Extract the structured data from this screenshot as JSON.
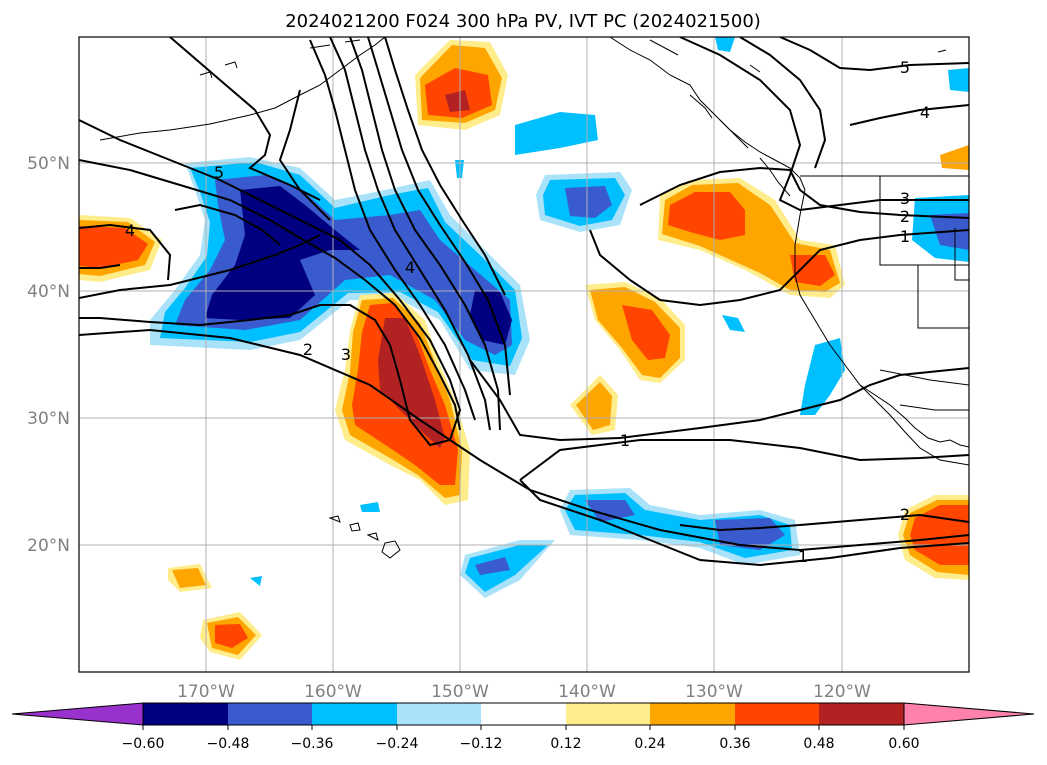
{
  "title": "2024021200 F024 300 hPa PV, IVT PC (2024021500)",
  "map": {
    "lon_labels": [
      "170°W",
      "160°W",
      "150°W",
      "140°W",
      "130°W",
      "120°W"
    ],
    "lat_labels": [
      "50°N",
      "40°N",
      "30°N",
      "20°N"
    ],
    "contour_labels": [
      "5",
      "4",
      "3",
      "2",
      "1"
    ],
    "colors": {
      "land_outline": "#000000",
      "gridlines": "#b0b0b0",
      "contours": "#000000"
    }
  },
  "colorbar": {
    "ticks": [
      "−0.60",
      "−0.48",
      "−0.36",
      "−0.24",
      "−0.12",
      "0.12",
      "0.24",
      "0.36",
      "0.48",
      "0.60"
    ],
    "colors": [
      "#9932cc",
      "#000080",
      "#3a5bcd",
      "#00bfff",
      "#aae3f9",
      "#ffffff",
      "#ffec8b",
      "#ffa500",
      "#ff4500",
      "#b22222",
      "#ff82ab"
    ]
  }
}
